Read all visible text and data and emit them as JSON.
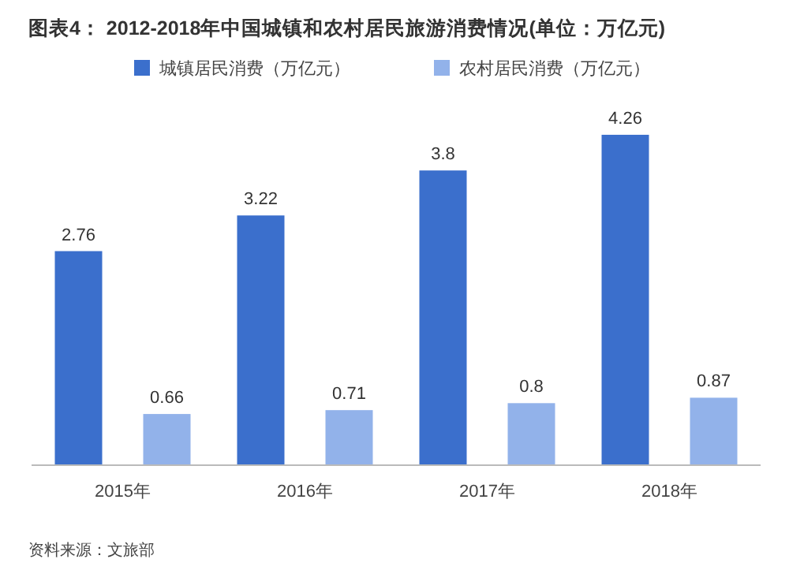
{
  "chart_data": {
    "type": "bar",
    "title": "图表4： 2012-2018年中国城镇和农村居民旅游消费情况(单位：万亿元)",
    "categories": [
      "2015年",
      "2016年",
      "2017年",
      "2018年"
    ],
    "series": [
      {
        "name": "城镇居民消费（万亿元）",
        "color": "#3b6fcc",
        "values": [
          2.76,
          3.22,
          3.8,
          4.26
        ]
      },
      {
        "name": "农村居民消费（万亿元）",
        "color": "#92b2ea",
        "values": [
          0.66,
          0.71,
          0.8,
          0.87
        ]
      }
    ],
    "data_labels": true,
    "legend": "top",
    "annotations": [
      "资料来源：文旅部"
    ]
  }
}
